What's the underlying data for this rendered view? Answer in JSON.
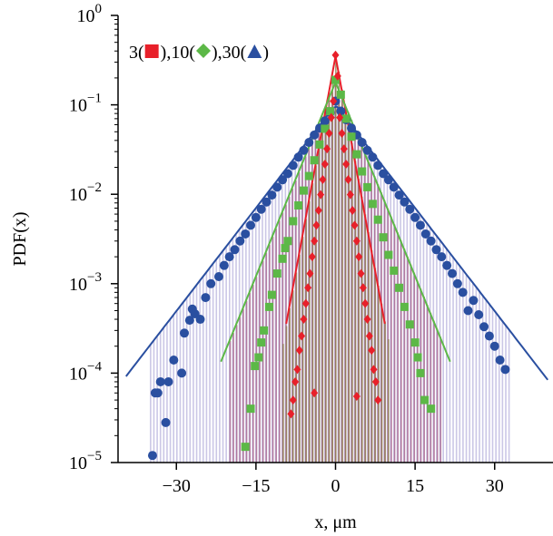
{
  "chart_data": {
    "type": "scatter",
    "title": "",
    "xlabel": "x, μm",
    "ylabel": "PDF(x)",
    "xlim": [
      -41,
      41
    ],
    "ylim_log10": [
      -5,
      0
    ],
    "y_scale": "log",
    "x_ticks": [
      -30,
      -15,
      0,
      15,
      30
    ],
    "x_tick_labels": [
      "−30",
      "−15",
      "0",
      "15",
      "30"
    ],
    "y_ticks": [
      {
        "base": "10",
        "exp": "0"
      },
      {
        "base": "10",
        "exp": "−1"
      },
      {
        "base": "10",
        "exp": "−2"
      },
      {
        "base": "10",
        "exp": "−3"
      },
      {
        "base": "10",
        "exp": "−4"
      },
      {
        "base": "10",
        "exp": "−5"
      }
    ],
    "legend": {
      "placement": "top-left",
      "parts": [
        {
          "text": "3(",
          "marker": null
        },
        {
          "text": "",
          "marker": "square",
          "color": "#e8202a"
        },
        {
          "text": "),10(",
          "marker": null
        },
        {
          "text": "",
          "marker": "diamond",
          "color": "#5cb847"
        },
        {
          "text": "),30(",
          "marker": null
        },
        {
          "text": "",
          "marker": "triangle",
          "color": "#2a4fa0"
        },
        {
          "text": ")",
          "marker": null
        }
      ]
    },
    "series": [
      {
        "label": "3",
        "marker": "diamond",
        "color": "#e8202a",
        "hist_color": "#8b7a48",
        "peak": 0.35,
        "fit_scale": 1.35,
        "x_range": [
          -10,
          10
        ],
        "fit_x_range": [
          -9.3,
          9.3
        ],
        "points": [
          [
            -8.4,
            3.5e-05
          ],
          [
            -8.0,
            5e-05
          ],
          [
            -7.6,
            8e-05
          ],
          [
            -7.2,
            0.00011
          ],
          [
            -6.8,
            0.00018
          ],
          [
            -6.4,
            0.00026
          ],
          [
            -6.0,
            0.0004
          ],
          [
            -5.6,
            0.0006
          ],
          [
            -5.2,
            0.0009
          ],
          [
            -4.8,
            0.0013
          ],
          [
            -4.4,
            0.002
          ],
          [
            -4.0,
            0.003
          ],
          [
            -3.6,
            0.0045
          ],
          [
            -3.2,
            0.0066
          ],
          [
            -2.8,
            0.0099
          ],
          [
            -2.4,
            0.0146
          ],
          [
            -2.0,
            0.0217
          ],
          [
            -1.6,
            0.0322
          ],
          [
            -1.2,
            0.048
          ],
          [
            -0.8,
            0.072
          ],
          [
            -0.4,
            0.11
          ],
          [
            0.0,
            0.36
          ],
          [
            0.4,
            0.21
          ],
          [
            0.8,
            0.072
          ],
          [
            1.2,
            0.048
          ],
          [
            1.6,
            0.0322
          ],
          [
            2.0,
            0.0217
          ],
          [
            2.4,
            0.0146
          ],
          [
            2.8,
            0.0099
          ],
          [
            3.2,
            0.0066
          ],
          [
            3.6,
            0.0045
          ],
          [
            4.0,
            0.003
          ],
          [
            4.4,
            0.002
          ],
          [
            4.8,
            0.0013
          ],
          [
            5.2,
            0.0009
          ],
          [
            5.6,
            0.0006
          ],
          [
            6.0,
            0.0004
          ],
          [
            6.4,
            0.00026
          ],
          [
            6.8,
            0.00018
          ],
          [
            7.2,
            0.00011
          ],
          [
            7.6,
            8e-05
          ],
          [
            8.0,
            5e-05
          ],
          [
            4.0,
            5.5e-05
          ],
          [
            -4.0,
            6e-05
          ]
        ]
      },
      {
        "label": "10",
        "marker": "square",
        "color": "#5cb847",
        "hist_color": "#a25a86",
        "peak": 0.18,
        "fit_scale": 3.0,
        "x_range": [
          -20,
          20
        ],
        "fit_x_range": [
          -21.6,
          21.6
        ],
        "points": [
          [
            -17.0,
            1.5e-05
          ],
          [
            -16.0,
            4e-05
          ],
          [
            -15.2,
            0.00012
          ],
          [
            -14.5,
            0.00015
          ],
          [
            -14.0,
            0.00022
          ],
          [
            -13.5,
            0.0003
          ],
          [
            -12.5,
            0.00055
          ],
          [
            -12.0,
            0.00075
          ],
          [
            -11.0,
            0.0013
          ],
          [
            -10.0,
            0.0019
          ],
          [
            -9.5,
            0.0025
          ],
          [
            -9.0,
            0.003
          ],
          [
            -8.0,
            0.005
          ],
          [
            -7.0,
            0.0075
          ],
          [
            -6.0,
            0.011
          ],
          [
            -5.0,
            0.016
          ],
          [
            -4.0,
            0.024
          ],
          [
            -3.0,
            0.036
          ],
          [
            -2.0,
            0.054
          ],
          [
            -1.0,
            0.085
          ],
          [
            0.0,
            0.19
          ],
          [
            1.0,
            0.13
          ],
          [
            2.0,
            0.07
          ],
          [
            3.0,
            0.044
          ],
          [
            4.0,
            0.028
          ],
          [
            5.0,
            0.018
          ],
          [
            6.0,
            0.012
          ],
          [
            7.0,
            0.0078
          ],
          [
            8.0,
            0.0052
          ],
          [
            9.0,
            0.0033
          ],
          [
            10.0,
            0.0021
          ],
          [
            11.0,
            0.0014
          ],
          [
            12.0,
            0.0009
          ],
          [
            13.0,
            0.00055
          ],
          [
            14.0,
            0.00035
          ],
          [
            15.0,
            0.00022
          ],
          [
            15.5,
            0.00015
          ],
          [
            16.0,
            0.0001
          ],
          [
            16.8,
            5e-05
          ],
          [
            18.0,
            4e-05
          ]
        ]
      },
      {
        "label": "30",
        "marker": "circle",
        "color": "#2a4fa0",
        "hist_color": "#b9b4de",
        "peak": 0.1,
        "fit_scale": 5.65,
        "x_range": [
          -35,
          33
        ],
        "fit_x_range": [
          -39.5,
          40
        ],
        "points": [
          [
            -34.5,
            1.2e-05
          ],
          [
            -34.0,
            6e-05
          ],
          [
            -33.5,
            6e-05
          ],
          [
            -33.0,
            8e-05
          ],
          [
            -32.0,
            2.8e-05
          ],
          [
            -31.5,
            8e-05
          ],
          [
            -30.5,
            0.00014
          ],
          [
            -29.0,
            0.0001
          ],
          [
            -28.5,
            0.00028
          ],
          [
            -27.5,
            0.00039
          ],
          [
            -27.0,
            0.00052
          ],
          [
            -26.5,
            0.00046
          ],
          [
            -25.5,
            0.0004
          ],
          [
            -24.5,
            0.0007
          ],
          [
            -23.5,
            0.001
          ],
          [
            -22.0,
            0.0012
          ],
          [
            -21.0,
            0.0016
          ],
          [
            -20.0,
            0.002
          ],
          [
            -19.0,
            0.0024
          ],
          [
            -18.0,
            0.003
          ],
          [
            -17.0,
            0.0036
          ],
          [
            -16.0,
            0.0045
          ],
          [
            -15.0,
            0.0055
          ],
          [
            -14.0,
            0.0068
          ],
          [
            -13.0,
            0.0082
          ],
          [
            -12.0,
            0.0098
          ],
          [
            -11.0,
            0.012
          ],
          [
            -10.0,
            0.0145
          ],
          [
            -9.0,
            0.017
          ],
          [
            -8.0,
            0.021
          ],
          [
            -7.0,
            0.026
          ],
          [
            -6.0,
            0.031
          ],
          [
            -5.0,
            0.038
          ],
          [
            -4.0,
            0.046
          ],
          [
            -3.0,
            0.055
          ],
          [
            -2.0,
            0.066
          ],
          [
            -1.0,
            0.082
          ],
          [
            0.0,
            0.11
          ],
          [
            1.0,
            0.085
          ],
          [
            2.0,
            0.068
          ],
          [
            3.0,
            0.055
          ],
          [
            4.0,
            0.046
          ],
          [
            5.0,
            0.038
          ],
          [
            6.0,
            0.031
          ],
          [
            7.0,
            0.026
          ],
          [
            8.0,
            0.021
          ],
          [
            9.0,
            0.017
          ],
          [
            10.0,
            0.0145
          ],
          [
            11.0,
            0.012
          ],
          [
            12.0,
            0.0098
          ],
          [
            13.0,
            0.0082
          ],
          [
            14.0,
            0.0068
          ],
          [
            15.0,
            0.0055
          ],
          [
            16.0,
            0.0045
          ],
          [
            17.0,
            0.0036
          ],
          [
            18.0,
            0.003
          ],
          [
            19.0,
            0.0024
          ],
          [
            20.0,
            0.002
          ],
          [
            21.0,
            0.0016
          ],
          [
            22.0,
            0.0013
          ],
          [
            23.0,
            0.001
          ],
          [
            24.0,
            0.0008
          ],
          [
            25.0,
            0.0005
          ],
          [
            26.0,
            0.00065
          ],
          [
            27.0,
            0.00045
          ],
          [
            28.0,
            0.00033
          ],
          [
            29.0,
            0.00026
          ],
          [
            30.0,
            0.0002
          ],
          [
            31.0,
            0.00014
          ],
          [
            32.0,
            0.00011
          ]
        ]
      }
    ]
  }
}
